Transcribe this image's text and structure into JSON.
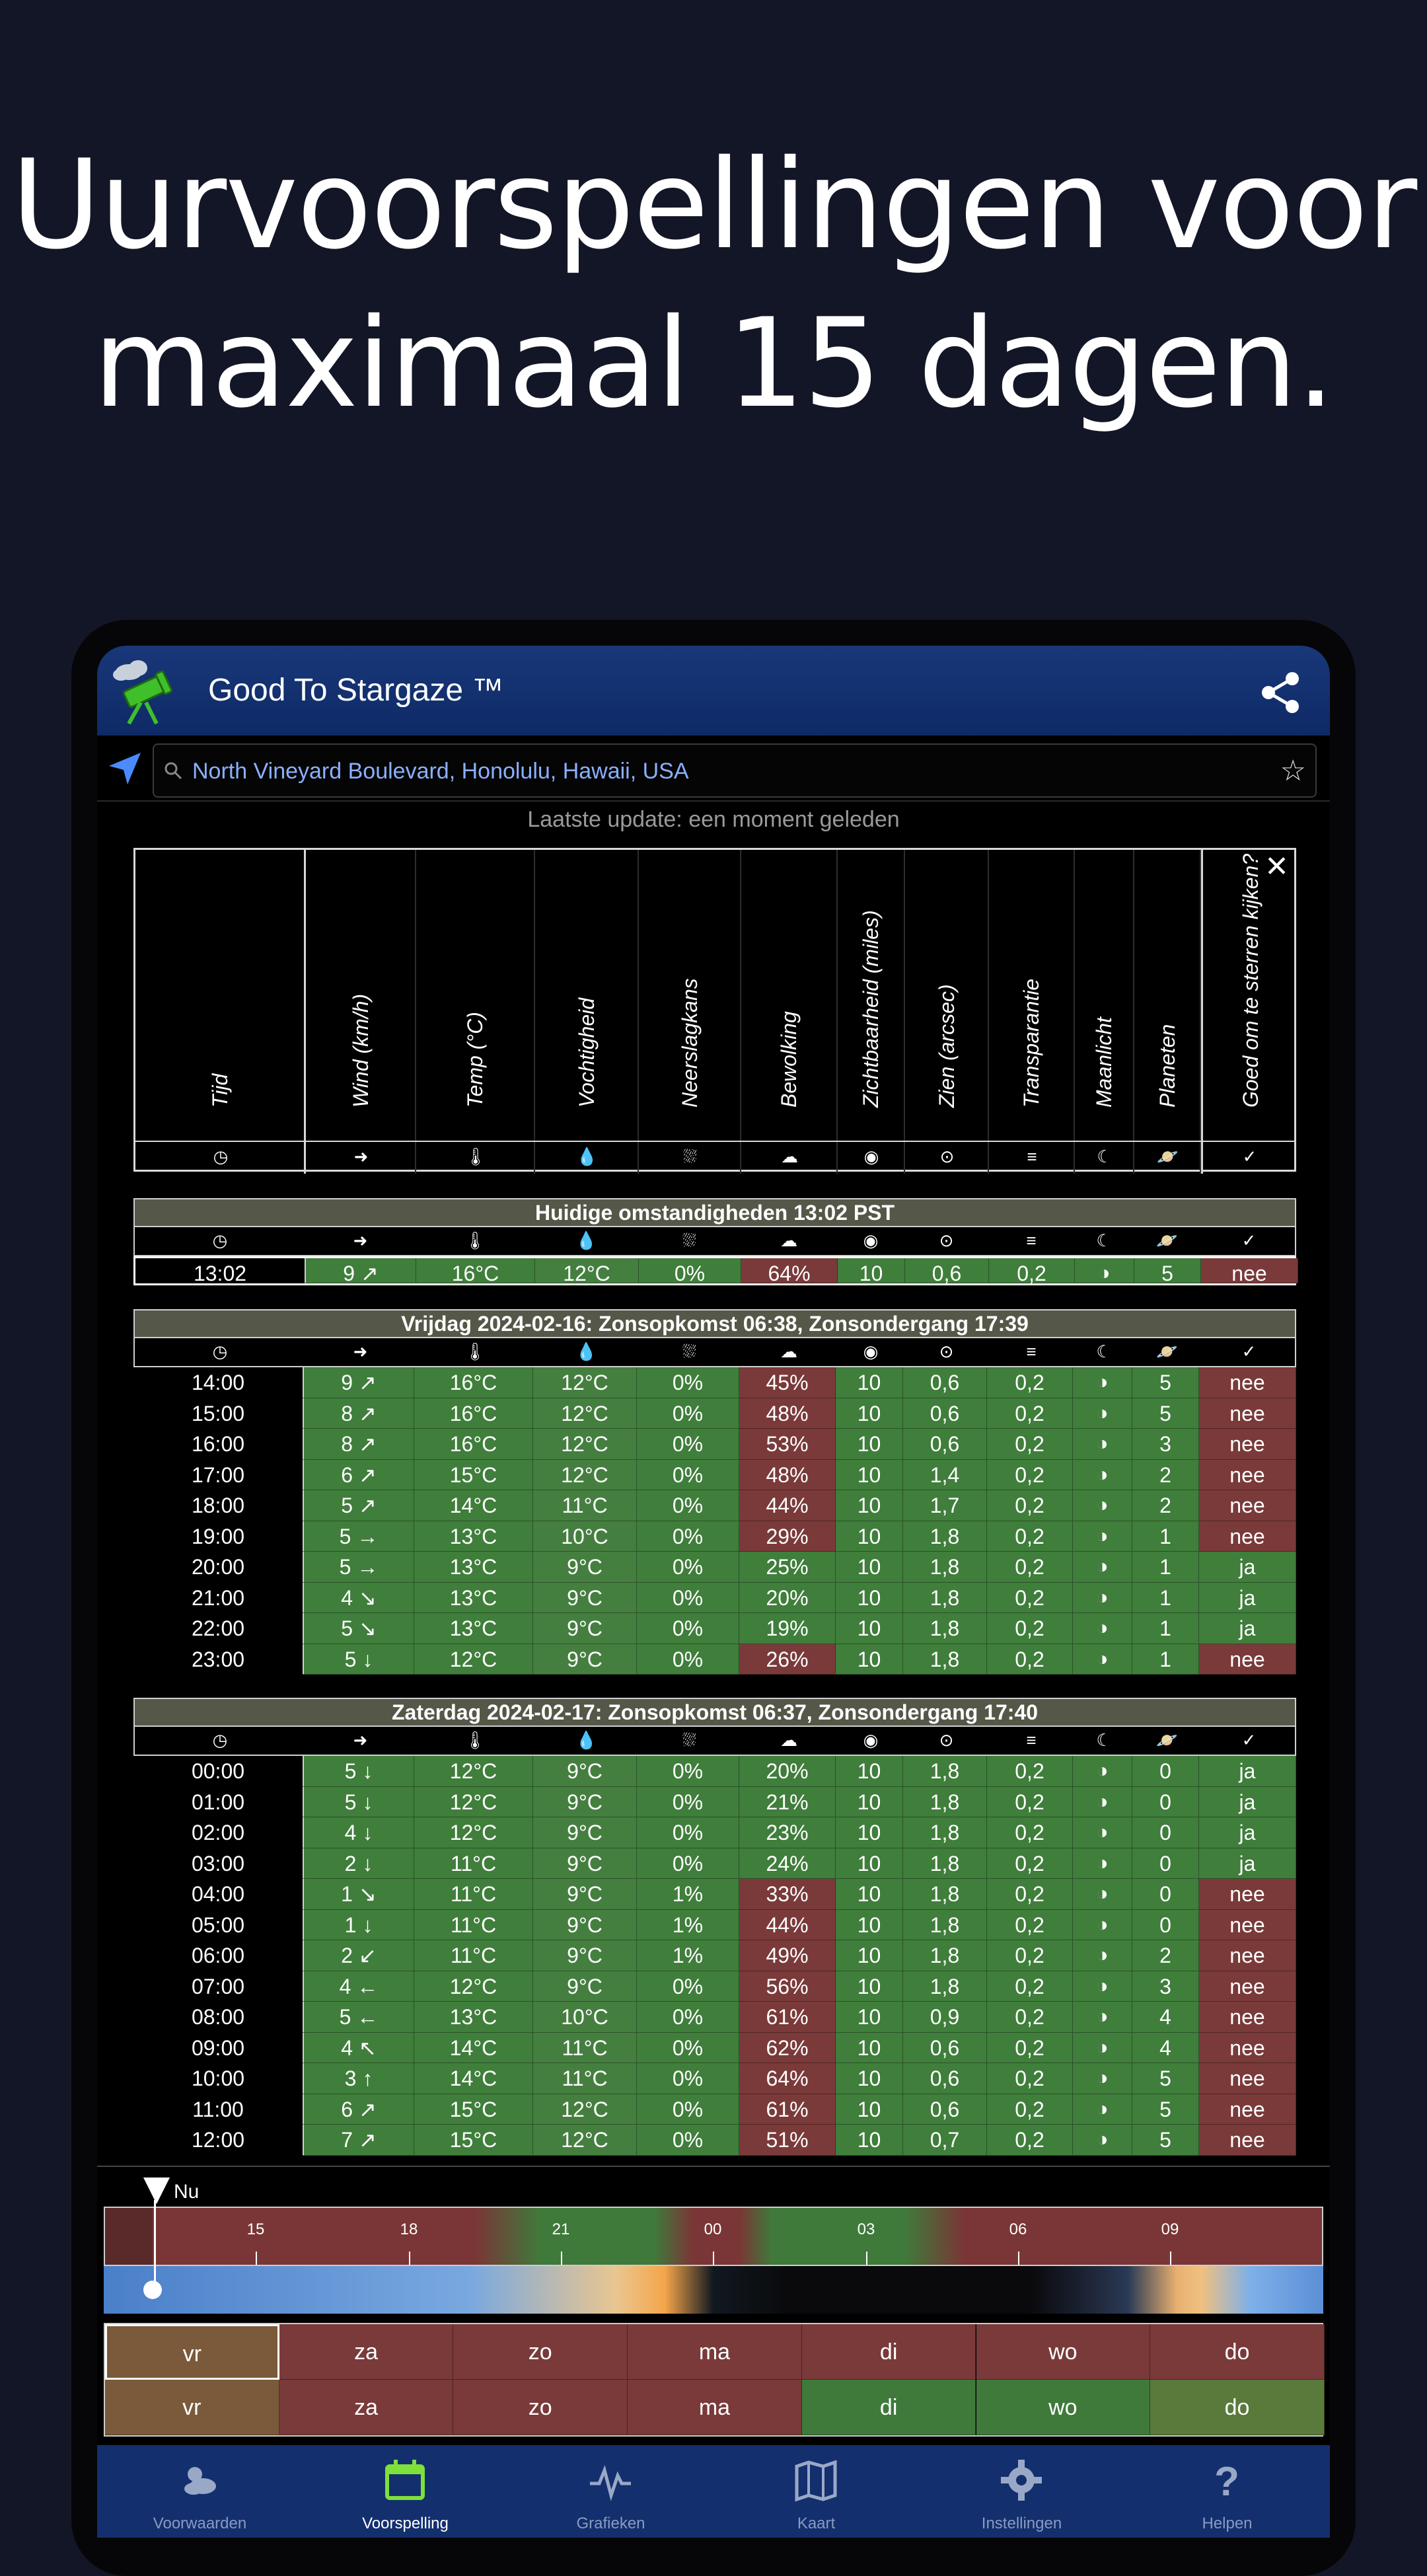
{
  "headline": {
    "line1": "Uurvoorspellingen voor",
    "line2": "maximaal 15 dagen."
  },
  "app": {
    "title": "Good To Stargaze ™",
    "location": "North Vineyard Boulevard, Honolulu, Hawaii, USA",
    "last_update": "Laatste update: een moment geleden"
  },
  "columns": [
    {
      "label": "Tijd",
      "icon": "clock-icon",
      "glyph": "◷"
    },
    {
      "label": "Wind (km/h)",
      "icon": "wind-arrow-icon",
      "glyph": "➜"
    },
    {
      "label": "Temp (°C)",
      "icon": "thermometer-icon",
      "glyph": "🌡"
    },
    {
      "label": "Vochtigheid",
      "icon": "droplet-icon",
      "glyph": "💧"
    },
    {
      "label": "Neerslagkans",
      "icon": "rain-cloud-icon",
      "glyph": "⛆"
    },
    {
      "label": "Bewolking",
      "icon": "cloud-icon",
      "glyph": "☁"
    },
    {
      "label": "Zichtbaarheid (miles)",
      "icon": "eye-icon",
      "glyph": "◉"
    },
    {
      "label": "Zien (arcsec)",
      "icon": "target-icon",
      "glyph": "⊙"
    },
    {
      "label": "Transparantie",
      "icon": "lines-icon",
      "glyph": "≡"
    },
    {
      "label": "Maanlicht",
      "icon": "moon-icon",
      "glyph": "☾"
    },
    {
      "label": "Planeten",
      "icon": "planet-icon",
      "glyph": "🪐"
    },
    {
      "label": "Goed om te sterren kijken?",
      "icon": "check-circle-icon",
      "glyph": "✓"
    }
  ],
  "current": {
    "title": "Huidige omstandigheden 13:02 PST",
    "row": {
      "time": "13:02",
      "wind": "9 ↗",
      "temp": "16°C",
      "hum": "12°C",
      "precip": "0%",
      "cloud": "64%",
      "vis": "10",
      "see": "0,6",
      "trans": "0,2",
      "moon": "◑",
      "planets": "5",
      "good": "nee"
    }
  },
  "friday": {
    "title": "Vrijdag 2024-02-16: Zonsopkomst 06:38, Zonsondergang 17:39",
    "rows": [
      {
        "time": "14:00",
        "wind": "9 ↗",
        "temp": "16°C",
        "hum": "12°C",
        "precip": "0%",
        "cloud": "45%",
        "vis": "10",
        "see": "0,6",
        "trans": "0,2",
        "moon": "◑",
        "planets": "5",
        "good": "nee"
      },
      {
        "time": "15:00",
        "wind": "8 ↗",
        "temp": "16°C",
        "hum": "12°C",
        "precip": "0%",
        "cloud": "48%",
        "vis": "10",
        "see": "0,6",
        "trans": "0,2",
        "moon": "◑",
        "planets": "5",
        "good": "nee"
      },
      {
        "time": "16:00",
        "wind": "8 ↗",
        "temp": "16°C",
        "hum": "12°C",
        "precip": "0%",
        "cloud": "53%",
        "vis": "10",
        "see": "0,6",
        "trans": "0,2",
        "moon": "◑",
        "planets": "3",
        "good": "nee"
      },
      {
        "time": "17:00",
        "wind": "6 ↗",
        "temp": "15°C",
        "hum": "12°C",
        "precip": "0%",
        "cloud": "48%",
        "vis": "10",
        "see": "1,4",
        "trans": "0,2",
        "moon": "◑",
        "planets": "2",
        "good": "nee"
      },
      {
        "time": "18:00",
        "wind": "5 ↗",
        "temp": "14°C",
        "hum": "11°C",
        "precip": "0%",
        "cloud": "44%",
        "vis": "10",
        "see": "1,7",
        "trans": "0,2",
        "moon": "◑",
        "planets": "2",
        "good": "nee"
      },
      {
        "time": "19:00",
        "wind": "5 →",
        "temp": "13°C",
        "hum": "10°C",
        "precip": "0%",
        "cloud": "29%",
        "vis": "10",
        "see": "1,8",
        "trans": "0,2",
        "moon": "◑",
        "planets": "1",
        "good": "nee"
      },
      {
        "time": "20:00",
        "wind": "5 →",
        "temp": "13°C",
        "hum": "9°C",
        "precip": "0%",
        "cloud": "25%",
        "vis": "10",
        "see": "1,8",
        "trans": "0,2",
        "moon": "◑",
        "planets": "1",
        "good": "ja"
      },
      {
        "time": "21:00",
        "wind": "4 ↘",
        "temp": "13°C",
        "hum": "9°C",
        "precip": "0%",
        "cloud": "20%",
        "vis": "10",
        "see": "1,8",
        "trans": "0,2",
        "moon": "◑",
        "planets": "1",
        "good": "ja"
      },
      {
        "time": "22:00",
        "wind": "5 ↘",
        "temp": "13°C",
        "hum": "9°C",
        "precip": "0%",
        "cloud": "19%",
        "vis": "10",
        "see": "1,8",
        "trans": "0,2",
        "moon": "◑",
        "planets": "1",
        "good": "ja"
      },
      {
        "time": "23:00",
        "wind": "5 ↓",
        "temp": "12°C",
        "hum": "9°C",
        "precip": "0%",
        "cloud": "26%",
        "vis": "10",
        "see": "1,8",
        "trans": "0,2",
        "moon": "◑",
        "planets": "1",
        "good": "nee"
      }
    ]
  },
  "saturday": {
    "title": "Zaterdag 2024-02-17: Zonsopkomst 06:37, Zonsondergang 17:40",
    "rows": [
      {
        "time": "00:00",
        "wind": "5 ↓",
        "temp": "12°C",
        "hum": "9°C",
        "precip": "0%",
        "cloud": "20%",
        "vis": "10",
        "see": "1,8",
        "trans": "0,2",
        "moon": "◑",
        "planets": "0",
        "good": "ja"
      },
      {
        "time": "01:00",
        "wind": "5 ↓",
        "temp": "12°C",
        "hum": "9°C",
        "precip": "0%",
        "cloud": "21%",
        "vis": "10",
        "see": "1,8",
        "trans": "0,2",
        "moon": "◑",
        "planets": "0",
        "good": "ja"
      },
      {
        "time": "02:00",
        "wind": "4 ↓",
        "temp": "12°C",
        "hum": "9°C",
        "precip": "0%",
        "cloud": "23%",
        "vis": "10",
        "see": "1,8",
        "trans": "0,2",
        "moon": "◑",
        "planets": "0",
        "good": "ja"
      },
      {
        "time": "03:00",
        "wind": "2 ↓",
        "temp": "11°C",
        "hum": "9°C",
        "precip": "0%",
        "cloud": "24%",
        "vis": "10",
        "see": "1,8",
        "trans": "0,2",
        "moon": "◑",
        "planets": "0",
        "good": "ja"
      },
      {
        "time": "04:00",
        "wind": "1 ↘",
        "temp": "11°C",
        "hum": "9°C",
        "precip": "1%",
        "cloud": "33%",
        "vis": "10",
        "see": "1,8",
        "trans": "0,2",
        "moon": "◑",
        "planets": "0",
        "good": "nee"
      },
      {
        "time": "05:00",
        "wind": "1 ↓",
        "temp": "11°C",
        "hum": "9°C",
        "precip": "1%",
        "cloud": "44%",
        "vis": "10",
        "see": "1,8",
        "trans": "0,2",
        "moon": "◑",
        "planets": "0",
        "good": "nee"
      },
      {
        "time": "06:00",
        "wind": "2 ↙",
        "temp": "11°C",
        "hum": "9°C",
        "precip": "1%",
        "cloud": "49%",
        "vis": "10",
        "see": "1,8",
        "trans": "0,2",
        "moon": "◑",
        "planets": "2",
        "good": "nee"
      },
      {
        "time": "07:00",
        "wind": "4 ←",
        "temp": "12°C",
        "hum": "9°C",
        "precip": "0%",
        "cloud": "56%",
        "vis": "10",
        "see": "1,8",
        "trans": "0,2",
        "moon": "◑",
        "planets": "3",
        "good": "nee"
      },
      {
        "time": "08:00",
        "wind": "5 ←",
        "temp": "13°C",
        "hum": "10°C",
        "precip": "0%",
        "cloud": "61%",
        "vis": "10",
        "see": "0,9",
        "trans": "0,2",
        "moon": "◑",
        "planets": "4",
        "good": "nee"
      },
      {
        "time": "09:00",
        "wind": "4 ↖",
        "temp": "14°C",
        "hum": "11°C",
        "precip": "0%",
        "cloud": "62%",
        "vis": "10",
        "see": "0,6",
        "trans": "0,2",
        "moon": "◑",
        "planets": "4",
        "good": "nee"
      },
      {
        "time": "10:00",
        "wind": "3 ↑",
        "temp": "14°C",
        "hum": "11°C",
        "precip": "0%",
        "cloud": "64%",
        "vis": "10",
        "see": "0,6",
        "trans": "0,2",
        "moon": "◑",
        "planets": "5",
        "good": "nee"
      },
      {
        "time": "11:00",
        "wind": "6 ↗",
        "temp": "15°C",
        "hum": "12°C",
        "precip": "0%",
        "cloud": "61%",
        "vis": "10",
        "see": "0,6",
        "trans": "0,2",
        "moon": "◑",
        "planets": "5",
        "good": "nee"
      },
      {
        "time": "12:00",
        "wind": "7 ↗",
        "temp": "15°C",
        "hum": "12°C",
        "precip": "0%",
        "cloud": "51%",
        "vis": "10",
        "see": "0,7",
        "trans": "0,2",
        "moon": "◑",
        "planets": "5",
        "good": "nee"
      }
    ]
  },
  "timeline": {
    "now_label": "Nu",
    "ticks": [
      "15",
      "18",
      "21",
      "00",
      "03",
      "06",
      "09"
    ]
  },
  "days": {
    "row1": [
      {
        "label": "vr",
        "color": "#7a5a3a"
      },
      {
        "label": "za",
        "color": "#7a3a3a"
      },
      {
        "label": "zo",
        "color": "#7a3a3a"
      },
      {
        "label": "ma",
        "color": "#7a3a3a"
      },
      {
        "label": "di",
        "color": "#7a3a3a"
      },
      {
        "label": "wo",
        "color": "#7a3a3a"
      },
      {
        "label": "do",
        "color": "#7a3a3a"
      }
    ],
    "row2": [
      {
        "label": "vr",
        "color": "#7a5a3a"
      },
      {
        "label": "za",
        "color": "#7a3a3a"
      },
      {
        "label": "zo",
        "color": "#7a3a3a"
      },
      {
        "label": "ma",
        "color": "#7a3a3a"
      },
      {
        "label": "di",
        "color": "#3f7a3b"
      },
      {
        "label": "wo",
        "color": "#3f7a3b"
      },
      {
        "label": "do",
        "color": "#5a7a3b"
      }
    ]
  },
  "nav": [
    {
      "label": "Voorwaarden",
      "icon": "weather-icon"
    },
    {
      "label": "Voorspelling",
      "icon": "calendar-icon"
    },
    {
      "label": "Grafieken",
      "icon": "pulse-chart-icon"
    },
    {
      "label": "Kaart",
      "icon": "map-icon"
    },
    {
      "label": "Instellingen",
      "icon": "gear-icon"
    },
    {
      "label": "Helpen",
      "icon": "question-icon"
    }
  ]
}
